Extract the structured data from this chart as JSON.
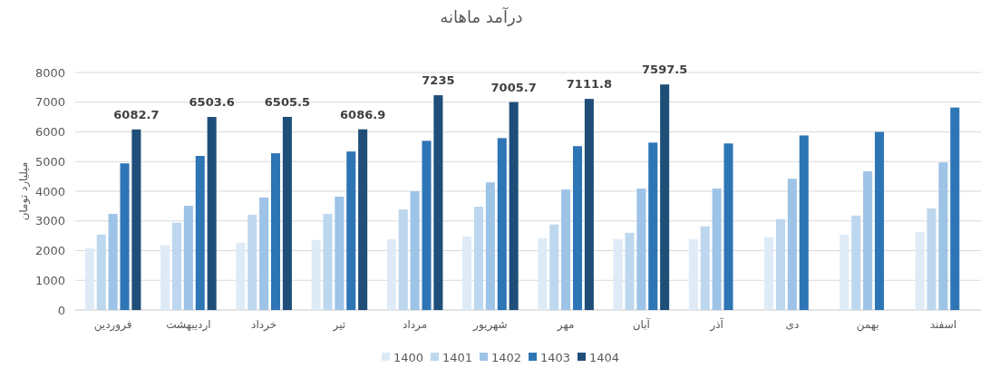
{
  "chart_data": {
    "type": "bar",
    "title": "درآمد ماهانه",
    "ylabel": "میلیارد تومان",
    "categories": [
      "فروردین",
      "اردیبهشت",
      "خرداد",
      "تیر",
      "مرداد",
      "شهریور",
      "مهر",
      "آبان",
      "آذر",
      "دی",
      "بهمن",
      "اسفند"
    ],
    "series": [
      {
        "name": "1400",
        "color": "#deebf7",
        "values": [
          2090,
          2180,
          2270,
          2360,
          2390,
          2480,
          2420,
          2390,
          2390,
          2450,
          2540,
          2630
        ]
      },
      {
        "name": "1401",
        "color": "#bdd7ee",
        "values": [
          2540,
          2940,
          3210,
          3240,
          3390,
          3480,
          2880,
          2600,
          2820,
          3060,
          3180,
          3420
        ]
      },
      {
        "name": "1402",
        "color": "#9dc3e6",
        "values": [
          3240,
          3510,
          3790,
          3820,
          4000,
          4300,
          4060,
          4090,
          4090,
          4420,
          4670,
          4970
        ]
      },
      {
        "name": "1403",
        "color": "#2e75b6",
        "values": [
          4940,
          5190,
          5280,
          5340,
          5700,
          5790,
          5520,
          5640,
          5610,
          5880,
          6000,
          6820
        ]
      },
      {
        "name": "1404",
        "color": "#1f4e79",
        "values": [
          6082.7,
          6503.6,
          6505.5,
          6086.9,
          7235,
          7005.7,
          7111.8,
          7597.5,
          null,
          null,
          null,
          null
        ],
        "value_labels": [
          "6082.7",
          "6503.6",
          "6505.5",
          "6086.9",
          "7235",
          "7005.7",
          "7111.8",
          "7597.5",
          null,
          null,
          null,
          null
        ]
      }
    ],
    "ylim": [
      0,
      8000
    ],
    "yticks": [
      0,
      1000,
      2000,
      3000,
      4000,
      5000,
      6000,
      7000,
      8000
    ],
    "grid": "y",
    "legend": "bottom"
  }
}
